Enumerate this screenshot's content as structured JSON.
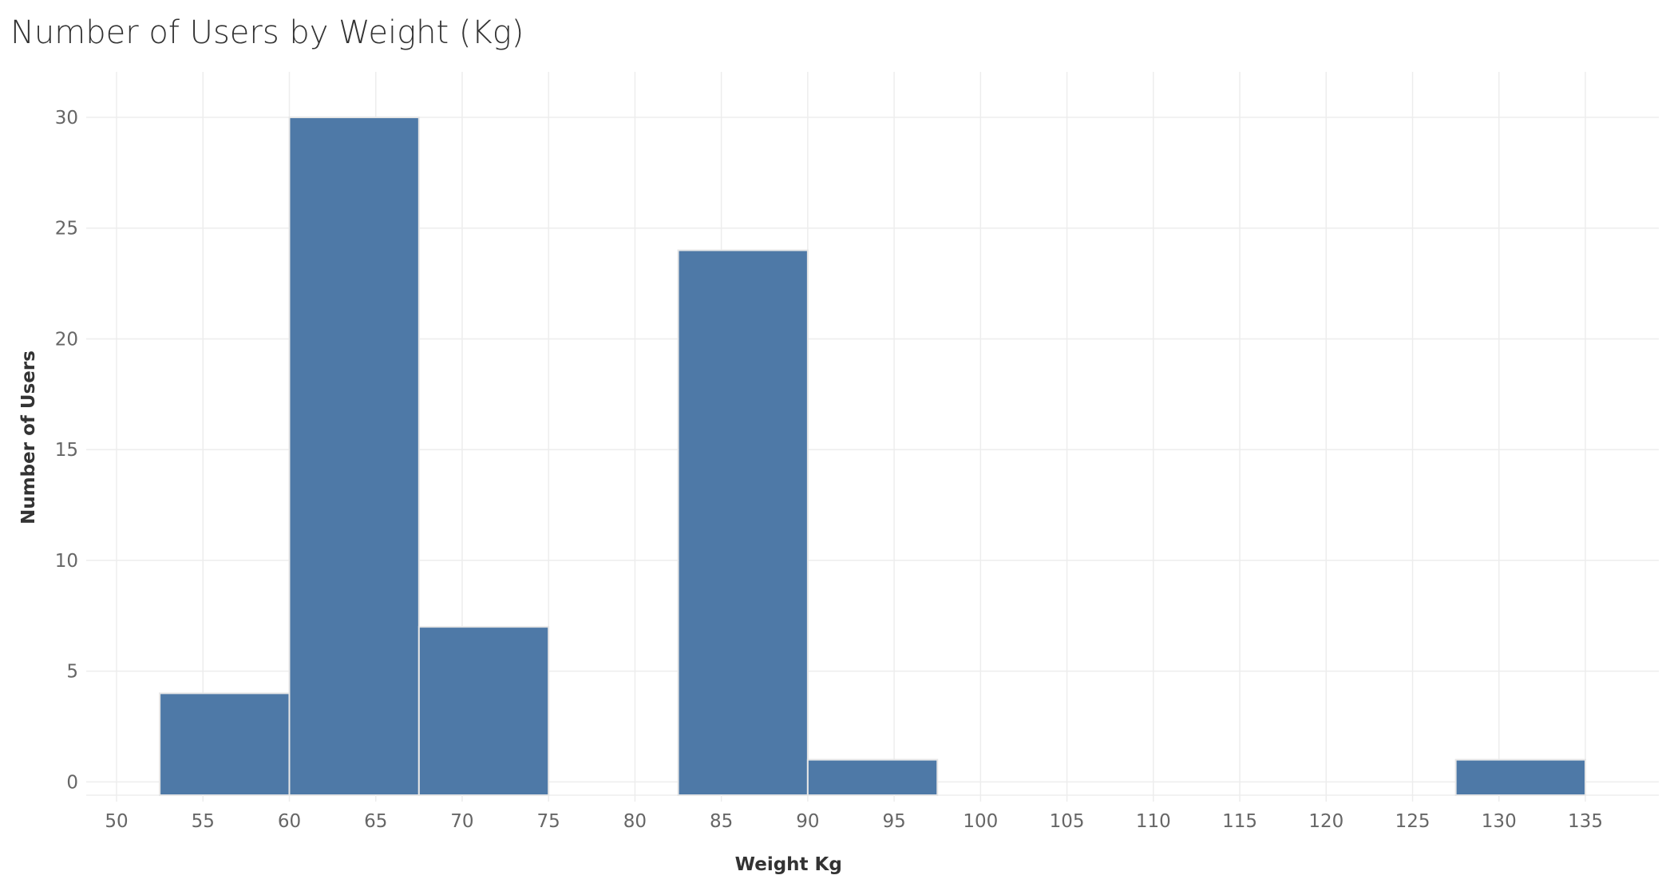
{
  "chart_data": {
    "type": "bar",
    "title": "Number of Users by Weight (Kg)",
    "xlabel": "Weight Kg",
    "ylabel": "Number of Users",
    "bin_width": 7.5,
    "bins": [
      {
        "start": 52.5,
        "end": 60,
        "value": 4
      },
      {
        "start": 60,
        "end": 67.5,
        "value": 30
      },
      {
        "start": 67.5,
        "end": 75,
        "value": 7
      },
      {
        "start": 82.5,
        "end": 90,
        "value": 24
      },
      {
        "start": 90,
        "end": 97.5,
        "value": 1
      },
      {
        "start": 127.5,
        "end": 135,
        "value": 1
      }
    ],
    "x_ticks": [
      50,
      55,
      60,
      65,
      70,
      75,
      80,
      85,
      90,
      95,
      100,
      105,
      110,
      115,
      120,
      125,
      130,
      135
    ],
    "y_ticks": [
      0,
      5,
      10,
      15,
      20,
      25,
      30
    ],
    "xlim": [
      48.25,
      140.5
    ],
    "ylim": [
      -0.6,
      32
    ],
    "grid": true,
    "bar_color": "#4e79a7",
    "bar_edge_color": "#e6e6e6",
    "grid_color": "#ededed",
    "tick_color": "#666666"
  }
}
